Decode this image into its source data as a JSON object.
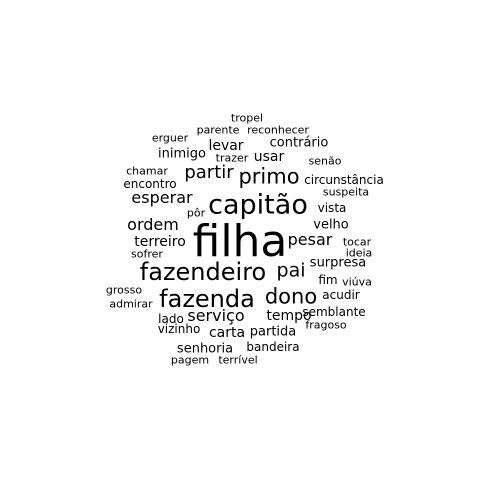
{
  "text_color": "#000000",
  "background": "#ffffff",
  "words": [
    {
      "text": "filha",
      "weight": 10
    },
    {
      "text": "capitão",
      "weight": 7
    },
    {
      "text": "fazendeiro",
      "weight": 6
    },
    {
      "text": "fazenda",
      "weight": 6
    },
    {
      "text": "dono",
      "weight": 5
    },
    {
      "text": "primo",
      "weight": 5
    },
    {
      "text": "pai",
      "weight": 5
    },
    {
      "text": "partir",
      "weight": 4
    },
    {
      "text": "pesar",
      "weight": 4
    },
    {
      "text": "esperar",
      "weight": 4
    },
    {
      "text": "ordem",
      "weight": 4
    },
    {
      "text": "serviço",
      "weight": 4
    },
    {
      "text": "terreiro",
      "weight": 3
    },
    {
      "text": "levar",
      "weight": 3
    },
    {
      "text": "usar",
      "weight": 3
    },
    {
      "text": "tempo",
      "weight": 3
    },
    {
      "text": "carta",
      "weight": 3
    },
    {
      "text": "velho",
      "weight": 3
    },
    {
      "text": "surpresa",
      "weight": 3
    },
    {
      "text": "contrário",
      "weight": 3
    },
    {
      "text": "inimigo",
      "weight": 3
    },
    {
      "text": "encontro",
      "weight": 3
    },
    {
      "text": "circunstância",
      "weight": 3
    },
    {
      "text": "vista",
      "weight": 2
    },
    {
      "text": "partida",
      "weight": 3
    },
    {
      "text": "semblante",
      "weight": 3
    },
    {
      "text": "senhoria",
      "weight": 3
    },
    {
      "text": "bandeira",
      "weight": 3
    },
    {
      "text": "vizinho",
      "weight": 3
    },
    {
      "text": "suspeita",
      "weight": 2
    },
    {
      "text": "fim",
      "weight": 2
    },
    {
      "text": "acudir",
      "weight": 2
    },
    {
      "text": "lado",
      "weight": 2
    },
    {
      "text": "sofrer",
      "weight": 2
    },
    {
      "text": "chamar",
      "weight": 2
    },
    {
      "text": "senão",
      "weight": 2
    },
    {
      "text": "reconhecer",
      "weight": 2
    },
    {
      "text": "parente",
      "weight": 2
    },
    {
      "text": "erguer",
      "weight": 2
    },
    {
      "text": "tropel",
      "weight": 2
    },
    {
      "text": "trazer",
      "weight": 2
    },
    {
      "text": "pôr",
      "weight": 2
    },
    {
      "text": "tocar",
      "weight": 2
    },
    {
      "text": "ideia",
      "weight": 2
    },
    {
      "text": "viúva",
      "weight": 2
    },
    {
      "text": "grosso",
      "weight": 2
    },
    {
      "text": "admirar",
      "weight": 2
    },
    {
      "text": "fragoso",
      "weight": 2
    },
    {
      "text": "pagem",
      "weight": 2
    },
    {
      "text": "terrível",
      "weight": 2
    }
  ]
}
